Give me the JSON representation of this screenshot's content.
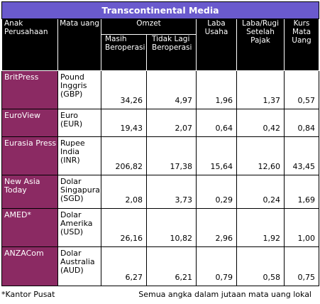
{
  "title": "Transcontinental Media",
  "headers": {
    "company": "Anak Perusahaan",
    "currency": "Mata uang",
    "revenue": "Omzet",
    "revenue_operating": "Masih Beroperasi",
    "revenue_discontinued": "Tidak Lagi Beroperasi",
    "operating_profit": "Laba Usaha",
    "net_profit": "Laba/Rugi Setelah Pajak",
    "exchange_rate": "Kurs Mata Uang"
  },
  "rows": [
    {
      "company": "BritPress",
      "currency": "Pound Inggris (GBP)",
      "operating": "34,26",
      "discontinued": "4,97",
      "op_profit": "1,96",
      "net_profit": "1,37",
      "rate": "0,57"
    },
    {
      "company": "EuroView",
      "currency": "Euro (EUR)",
      "operating": "19,43",
      "discontinued": "2,07",
      "op_profit": "0,64",
      "net_profit": "0,42",
      "rate": "0,84"
    },
    {
      "company": "Eurasia Press",
      "currency": "Rupee India (INR)",
      "operating": "206,82",
      "discontinued": "17,38",
      "op_profit": "15,64",
      "net_profit": "12,60",
      "rate": "43,45"
    },
    {
      "company": "New Asia Today",
      "currency": "Dolar Singapura (SGD)",
      "operating": "2,08",
      "discontinued": "3,73",
      "op_profit": "0,29",
      "net_profit": "0,24",
      "rate": "1,69"
    },
    {
      "company": "AMED*",
      "currency": "Dolar Amerika (USD)",
      "operating": "26,16",
      "discontinued": "10,82",
      "op_profit": "2,96",
      "net_profit": "1,92",
      "rate": "1,00"
    },
    {
      "company": "ANZACom",
      "currency": "Dolar Australia (AUD)",
      "operating": "6,27",
      "discontinued": "6,21",
      "op_profit": "0,79",
      "net_profit": "0,58",
      "rate": "0,75"
    }
  ],
  "footnote_left": "*Kantor Pusat",
  "footnote_right": "Semua angka dalam jutaan mata uang lokal",
  "colors": {
    "title_bg": "#6a5acd",
    "header_bg": "#000000",
    "company_bg": "#8b2a63"
  }
}
